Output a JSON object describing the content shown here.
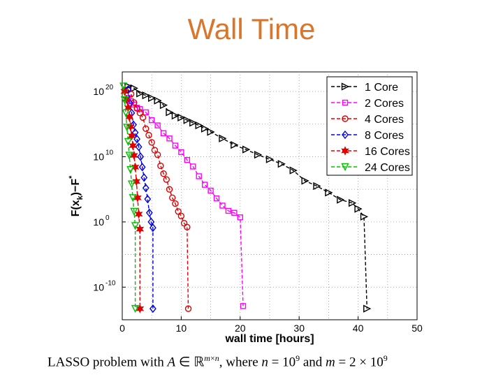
{
  "slide": {
    "title": "Wall Time",
    "caption": {
      "part1": "LASSO problem with ",
      "A": "A",
      "in": " ∈ ",
      "R": "ℝ",
      "m": "m",
      "times": "×",
      "n": "n",
      "part2": ", where ",
      "n2": "n",
      "eq1": " = 10",
      "exp1": "9",
      "and": " and ",
      "m2": "m",
      "eq2": " = 2 × 10",
      "exp2": "9"
    }
  },
  "colors": {
    "title": "#d9762b",
    "series": [
      "#000000",
      "#ff00ff",
      "#e00000",
      "#0000e6",
      "#e00000",
      "#00c000"
    ]
  },
  "chart_data": {
    "type": "line",
    "xlabel": "wall time [hours]",
    "ylabel": "F(x_k)−F*",
    "ylabel_parts": {
      "F1": "F(x",
      "k": "k",
      "mid": ")−F",
      "star": "*"
    },
    "xlim": [
      0,
      50
    ],
    "ylim_log10": [
      -15,
      23
    ],
    "yscale": "log",
    "grid": true,
    "legend": "top-right",
    "xticks": [
      0,
      10,
      20,
      30,
      40,
      50
    ],
    "yticks": [
      {
        "base": "10",
        "exp": "20",
        "value": 20
      },
      {
        "base": "10",
        "exp": "10",
        "value": 10
      },
      {
        "base": "10",
        "exp": "0",
        "value": 0
      },
      {
        "base": "10",
        "exp": "-10",
        "value": -10
      }
    ],
    "series": [
      {
        "name": "1 Core",
        "marker": "triangle-right",
        "x": [
          1,
          2,
          3,
          4,
          5,
          6,
          7,
          8,
          9,
          10,
          11,
          12,
          13,
          14,
          15,
          17,
          19,
          21,
          23,
          25,
          27,
          29,
          31,
          33,
          35,
          37,
          39,
          40,
          41,
          41.5
        ],
        "y": [
          20.8,
          20.5,
          19.7,
          19.4,
          19.0,
          18.6,
          17.9,
          16.8,
          16.3,
          16.0,
          15.6,
          15.2,
          14.8,
          14.3,
          13.8,
          12.8,
          11.8,
          11.1,
          10.3,
          9.6,
          8.9,
          7.9,
          6.3,
          5.5,
          4.5,
          3.4,
          2.9,
          2.0,
          0.8,
          -13.3
        ]
      },
      {
        "name": "2 Cores",
        "marker": "square",
        "x": [
          1,
          1.5,
          2,
          2.5,
          3,
          4,
          5,
          6,
          7,
          8,
          9,
          10,
          11,
          12,
          13,
          14,
          15,
          16,
          17,
          18,
          19,
          20,
          20.5
        ],
        "y": [
          19.0,
          18.5,
          18.0,
          17.5,
          17.3,
          16.8,
          15.6,
          14.8,
          13.6,
          12.8,
          11.7,
          10.7,
          9.5,
          8.5,
          7.0,
          5.7,
          4.8,
          3.6,
          2.5,
          1.7,
          1.4,
          0.7,
          -12.9
        ]
      },
      {
        "name": "4 Cores",
        "marker": "circle",
        "x": [
          1,
          1.5,
          2,
          2.5,
          3,
          3.5,
          4,
          4.5,
          5,
          5.5,
          6,
          6.5,
          7,
          7.5,
          8,
          8.5,
          9,
          9.5,
          10,
          10.5,
          11,
          11.2
        ],
        "y": [
          20.3,
          19.6,
          18.3,
          17.4,
          16.7,
          16.0,
          14.3,
          13.3,
          12.2,
          11.0,
          10.3,
          8.6,
          7.4,
          6.5,
          5.0,
          3.7,
          2.8,
          1.6,
          0.9,
          -0.2,
          -0.8,
          -13.3
        ]
      },
      {
        "name": "8 Cores",
        "marker": "diamond",
        "x": [
          1,
          1.3,
          1.6,
          1.9,
          2.2,
          2.5,
          2.8,
          3.1,
          3.4,
          3.7,
          4,
          4.3,
          4.6,
          4.9,
          5.2,
          5.2
        ],
        "y": [
          20.3,
          18.2,
          16.7,
          14.9,
          13.7,
          12.7,
          11.5,
          10.0,
          8.4,
          6.8,
          5.2,
          3.5,
          1.4,
          0.0,
          -0.9,
          -13.3
        ]
      },
      {
        "name": "16 Cores",
        "marker": "hexagram",
        "x": [
          0.4,
          0.7,
          1.0,
          1.2,
          1.4,
          1.6,
          1.8,
          2.0,
          2.2,
          2.4,
          2.6,
          2.8,
          3.0,
          3.0
        ],
        "y": [
          20.0,
          18.8,
          17.5,
          16.1,
          14.6,
          13.2,
          11.7,
          10.2,
          8.4,
          6.2,
          3.7,
          1.2,
          -1.1,
          -13.3
        ]
      },
      {
        "name": "24 Cores",
        "marker": "triangle-down",
        "x": [
          0.2,
          0.4,
          0.6,
          0.8,
          1.0,
          1.2,
          1.4,
          1.6,
          1.8,
          2.0,
          2.2,
          2.2
        ],
        "y": [
          20.8,
          18.7,
          16.7,
          14.5,
          12.3,
          10.2,
          8.0,
          5.8,
          3.7,
          1.6,
          -0.6,
          -13.3
        ]
      }
    ]
  }
}
